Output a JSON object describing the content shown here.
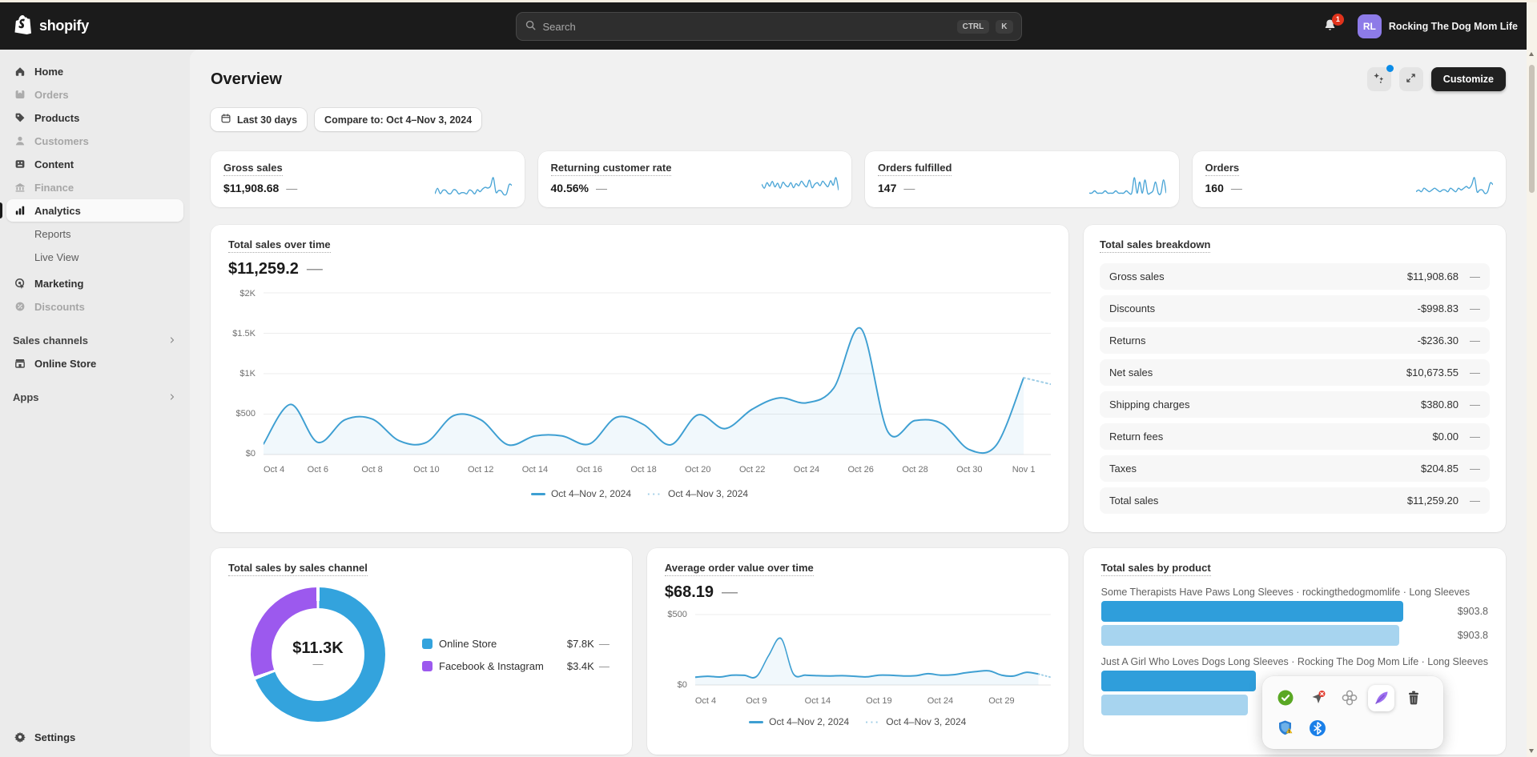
{
  "topbar": {
    "brand": "shopify",
    "search": {
      "placeholder": "Search",
      "shortcut_keys": [
        "CTRL",
        "K"
      ]
    },
    "notifications": {
      "count": "1"
    },
    "account": {
      "initials": "RL",
      "name": "Rocking The Dog Mom Life"
    }
  },
  "sidebar": {
    "items": [
      {
        "label": "Home"
      },
      {
        "label": "Orders",
        "disabled": true
      },
      {
        "label": "Products"
      },
      {
        "label": "Customers",
        "disabled": true
      },
      {
        "label": "Content"
      },
      {
        "label": "Finance",
        "disabled": true
      },
      {
        "label": "Analytics",
        "active": true
      },
      {
        "label": "Reports",
        "sub": true
      },
      {
        "label": "Live View",
        "sub": true
      },
      {
        "label": "Marketing"
      },
      {
        "label": "Discounts",
        "disabled": true
      }
    ],
    "sections": {
      "sales_channels": "Sales channels",
      "apps": "Apps"
    },
    "online_store": "Online Store",
    "settings": "Settings"
  },
  "page": {
    "title": "Overview",
    "no_change": "—",
    "buttons": {
      "customize": "Customize"
    },
    "filters": {
      "date_range": "Last 30 days",
      "compare": "Compare to: Oct 4–Nov 3, 2024"
    }
  },
  "metric_cards": [
    {
      "title": "Gross sales",
      "value": "$11,908.68",
      "sparkline": [
        130,
        620,
        150,
        430,
        440,
        170,
        150,
        480,
        430,
        120,
        230,
        230,
        130,
        460,
        370,
        120,
        490,
        320,
        560,
        700,
        640,
        820,
        1560,
        280,
        420,
        380,
        60,
        120,
        950,
        870
      ]
    },
    {
      "title": "Returning customer rate",
      "value": "40.56%",
      "sparkline": [
        44,
        28,
        50,
        36,
        55,
        33,
        48,
        28,
        52,
        40,
        34,
        50,
        30,
        46,
        38,
        56,
        42,
        34,
        60,
        30,
        44,
        50,
        38,
        56,
        44,
        34,
        58,
        40,
        70,
        20
      ]
    },
    {
      "title": "Orders fulfilled",
      "value": "147",
      "sparkline": [
        1,
        1,
        2,
        1,
        1,
        1,
        2,
        1,
        1,
        1,
        2,
        1,
        1,
        1,
        2,
        1,
        1,
        8,
        1,
        6,
        1,
        7,
        1,
        1,
        2,
        6,
        1,
        1,
        7,
        1
      ]
    },
    {
      "title": "Orders",
      "value": "160",
      "sparkline": [
        2,
        3,
        2,
        4,
        3,
        2,
        3,
        4,
        3,
        2,
        3,
        3,
        2,
        4,
        3,
        2,
        4,
        3,
        4,
        5,
        4,
        6,
        10,
        2,
        3,
        3,
        1,
        2,
        7,
        6
      ]
    }
  ],
  "breakdown": {
    "title": "Total sales breakdown",
    "rows": [
      {
        "label": "Gross sales",
        "value": "$11,908.68"
      },
      {
        "label": "Discounts",
        "value": "-$998.83"
      },
      {
        "label": "Returns",
        "value": "-$236.30"
      },
      {
        "label": "Net sales",
        "value": "$10,673.55"
      },
      {
        "label": "Shipping charges",
        "value": "$380.80"
      },
      {
        "label": "Return fees",
        "value": "$0.00"
      },
      {
        "label": "Taxes",
        "value": "$204.85"
      },
      {
        "label": "Total sales",
        "value": "$11,259.20"
      }
    ]
  },
  "chart_data": [
    {
      "type": "line",
      "title": "Total sales over time",
      "current_value": "$11,259.2",
      "x_start": "Oct 4",
      "x_end": "Nov 2",
      "values": [
        130,
        620,
        150,
        430,
        440,
        170,
        150,
        480,
        430,
        120,
        230,
        230,
        130,
        460,
        370,
        120,
        490,
        320,
        560,
        700,
        640,
        820,
        1560,
        280,
        420,
        380,
        60,
        120,
        950,
        870
      ],
      "dotted_from_index": 28,
      "ylim": [
        0,
        2000
      ],
      "grid_values": [
        0,
        500,
        1000,
        1500,
        2000
      ],
      "y_ticks": [
        "$0",
        "$500",
        "$1K",
        "$1.5K",
        "$2K"
      ],
      "x_ticks": [
        "Oct 4",
        "Oct 6",
        "Oct 8",
        "Oct 10",
        "Oct 12",
        "Oct 14",
        "Oct 16",
        "Oct 18",
        "Oct 20",
        "Oct 22",
        "Oct 24",
        "Oct 26",
        "Oct 28",
        "Oct 30",
        "Nov 1"
      ],
      "x_tick_indices": [
        0,
        2,
        4,
        6,
        8,
        10,
        12,
        14,
        16,
        18,
        20,
        22,
        24,
        26,
        28
      ],
      "legend": {
        "current": "Oct 4–Nov 2, 2024",
        "previous": "Oct 4–Nov 3, 2024"
      },
      "line_color": "#3e9fd2",
      "grid": true,
      "legend_position": "bottom"
    },
    {
      "type": "pie",
      "title": "Total sales by sales channel",
      "total_label": "$11.3K",
      "segments": [
        {
          "label": "Online Store",
          "value": 7800,
          "value_label": "$7.8K",
          "color": "#33a3dd"
        },
        {
          "label": "Facebook & Instagram",
          "value": 3400,
          "value_label": "$3.4K",
          "color": "#9c59ee"
        }
      ]
    },
    {
      "type": "line",
      "title": "Average order value over time",
      "current_value": "$68.19",
      "values": [
        55,
        62,
        57,
        70,
        69,
        60,
        210,
        330,
        80,
        70,
        66,
        64,
        66,
        62,
        58,
        70,
        69,
        64,
        66,
        80,
        70,
        72,
        86,
        96,
        100,
        70,
        64,
        90,
        78,
        55
      ],
      "dotted_from_index": 28,
      "ylim": [
        0,
        500
      ],
      "grid_values": [
        0,
        500
      ],
      "y_ticks": [
        "$0",
        "$500"
      ],
      "x_ticks": [
        "Oct 4",
        "Oct 9",
        "Oct 14",
        "Oct 19",
        "Oct 24",
        "Oct 29"
      ],
      "x_tick_indices": [
        0,
        5,
        10,
        15,
        20,
        25
      ],
      "legend": {
        "current": "Oct 4–Nov 2, 2024",
        "previous": "Oct 4–Nov 3, 2024"
      },
      "line_color": "#3e9fd2",
      "grid": true,
      "legend_position": "bottom"
    },
    {
      "type": "bar",
      "title": "Total sales by product",
      "bar_colors": {
        "current": "#2f9edb",
        "previous": "#a7d4ef"
      },
      "products": [
        {
          "name": "Some Therapists Have Paws Long Sleeves · rockingthedogmomlife · Long Sleeves",
          "bars": [
            {
              "period": "current",
              "pct": 78,
              "value_label": "$903.8"
            },
            {
              "period": "previous",
              "pct": 77,
              "value_label": "$903.8"
            }
          ]
        },
        {
          "name": "Just A Girl Who Loves Dogs Long Sleeves · Rocking The Dog Mom Life · Long Sleeves",
          "bars": [
            {
              "period": "current",
              "pct": 40
            },
            {
              "period": "previous",
              "pct": 38
            }
          ]
        }
      ]
    }
  ],
  "overlay_toolbar": {
    "icons": [
      "check-badge-icon",
      "navigation-error-icon",
      "clover-icon",
      "feather-icon",
      "trash-icon",
      "shield-warning-icon",
      "bluetooth-icon"
    ],
    "selected": "feather-icon"
  }
}
